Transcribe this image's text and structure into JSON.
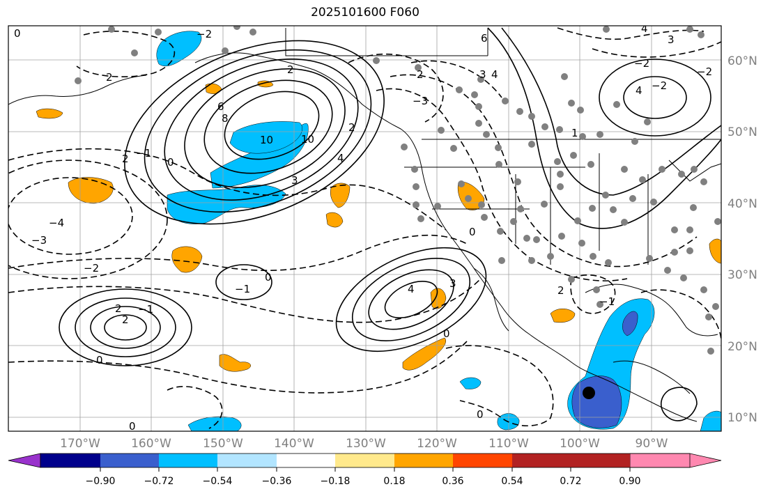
{
  "title": "2025101600 F060",
  "latitudes": [
    "60°N",
    "50°N",
    "40°N",
    "30°N",
    "20°N",
    "10°N"
  ],
  "longitudes": [
    "170°W",
    "160°W",
    "150°W",
    "140°W",
    "130°W",
    "120°W",
    "110°W",
    "100°W",
    "90°W"
  ],
  "colorbar": {
    "colors": [
      "#9932cc",
      "#00008b",
      "#3a5fcd",
      "#00bfff",
      "#b2e5ff",
      "#ffffff",
      "#ffe98c",
      "#ffa500",
      "#ff4500",
      "#b22222",
      "#ff88b0"
    ],
    "labels": [
      "−0.90",
      "−0.72",
      "−0.54",
      "−0.36",
      "−0.18",
      "0.18",
      "0.36",
      "0.54",
      "0.72",
      "0.90"
    ]
  },
  "contour_labels": [
    "0",
    "2",
    "2",
    "−1",
    "0",
    "−2",
    "−4",
    "−3",
    "−2",
    "2",
    "2",
    "6",
    "8",
    "10",
    "10",
    "2",
    "3",
    "4",
    "3",
    "4",
    "6",
    "−3",
    "0",
    "2",
    "4",
    "4",
    "3",
    "3",
    "4",
    "−2",
    "2",
    "1",
    "−1",
    "0",
    "−1",
    "−2",
    "0",
    "−2",
    "2",
    "−1",
    "0",
    "0",
    "0"
  ],
  "marker": {
    "name": "storm center"
  }
}
